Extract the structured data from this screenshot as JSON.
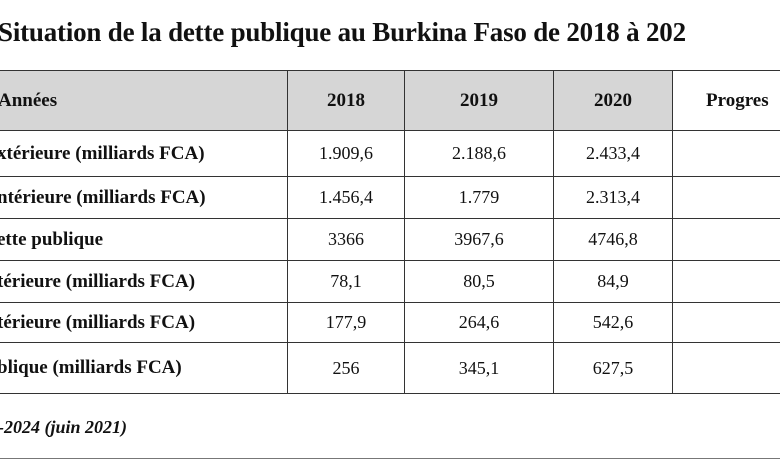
{
  "title": "Situation de la dette publique au Burkina Faso de 2018 à 202",
  "table": {
    "headers": [
      "Années",
      "2018",
      "2019",
      "2020",
      "Progres"
    ],
    "rows": [
      {
        "label": "xtérieure (milliards FCA)",
        "values": [
          "1.909,6",
          "2.188,6",
          "2.433,4",
          ""
        ]
      },
      {
        "label": "ntérieure (milliards FCA)",
        "values": [
          "1.456,4",
          "1.779",
          "2.313,4",
          ""
        ]
      },
      {
        "label": "ette publique",
        "values": [
          "3366",
          "3967,6",
          "4746,8",
          ""
        ]
      },
      {
        "label": "térieure (milliards FCA)",
        "values": [
          "78,1",
          "80,5",
          "84,9",
          ""
        ]
      },
      {
        "label": "térieure (milliards FCA)",
        "values": [
          "177,9",
          "264,6",
          "542,6",
          ""
        ]
      },
      {
        "label": "blique (milliards FCA)",
        "values": [
          "256",
          "345,1",
          "627,5",
          ""
        ]
      }
    ]
  },
  "source": "-2024 (juin 2021)",
  "colors": {
    "header_bg": "#d6d6d6",
    "border": "#333333"
  }
}
